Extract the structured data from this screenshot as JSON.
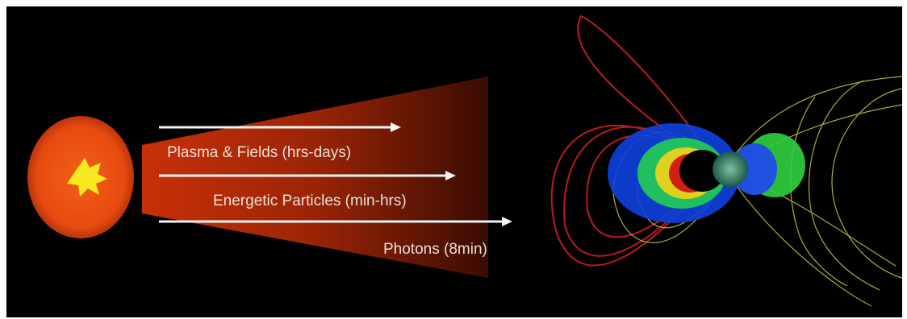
{
  "arrows": [
    {
      "label": "Plasma & Fields (hrs-days)"
    },
    {
      "label": "Energetic Particles (min-hrs)"
    },
    {
      "label": "Photons (8min)"
    }
  ]
}
